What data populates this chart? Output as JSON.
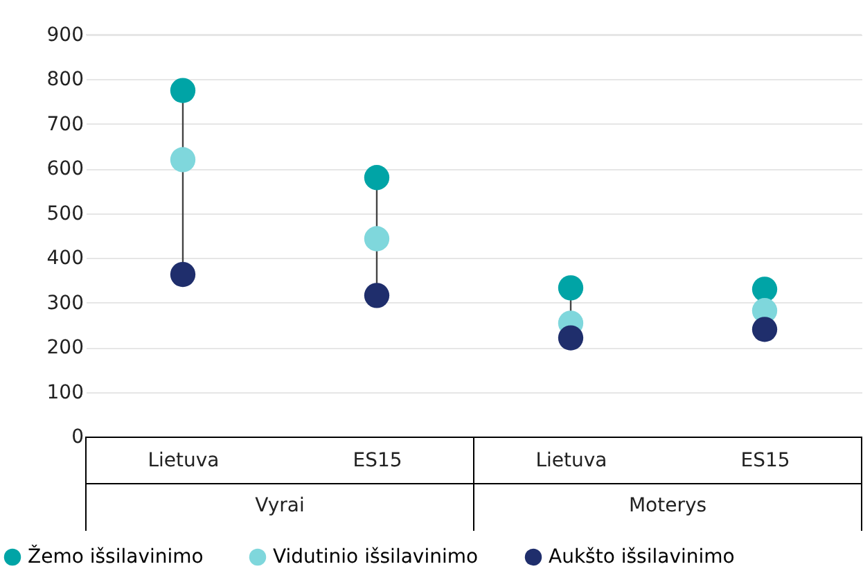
{
  "chart_data": {
    "type": "scatter",
    "categories": [
      "Lietuva",
      "ES15",
      "Lietuva",
      "ES15"
    ],
    "annotations": [
      "Vyrai",
      "Moterys"
    ],
    "series": [
      {
        "name": "Žemo išsilavinimo",
        "color": "#00a4a6",
        "values": [
          775,
          580,
          333,
          330
        ]
      },
      {
        "name": "Vidutinio išsilavinimo",
        "color": "#7fd7dc",
        "values": [
          620,
          443,
          254,
          282
        ]
      },
      {
        "name": "Aukšto išsilavinimo",
        "color": "#1f2e6c",
        "values": [
          363,
          316,
          221,
          240
        ]
      }
    ],
    "ylim": [
      0,
      900
    ],
    "yticks": [
      0,
      100,
      200,
      300,
      400,
      500,
      600,
      700,
      800,
      900
    ],
    "grid": "y",
    "legend": "bottom",
    "marker": "circle"
  }
}
